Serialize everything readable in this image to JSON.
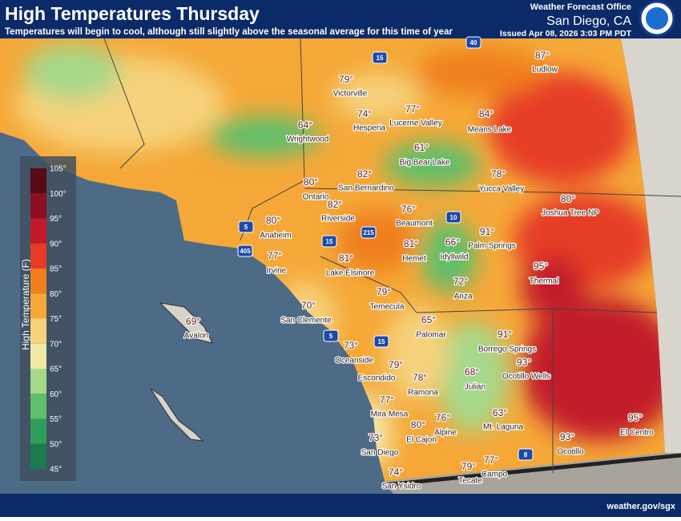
{
  "header": {
    "title": "High Temperatures Thursday",
    "subtitle": "Temperatures will begin to cool, although still slightly above the seasonal average for this time of year",
    "office": "Weather Forecast Office",
    "location": "San Diego, CA",
    "issued": "Issued Apr 08, 2026 3:03 PM PDT"
  },
  "legend": {
    "title": "High Temperature (F)",
    "items": [
      {
        "label": "105°",
        "color": "#5a0a14"
      },
      {
        "label": "100°",
        "color": "#8b0f22"
      },
      {
        "label": "95°",
        "color": "#c21a2a"
      },
      {
        "label": "90°",
        "color": "#e63c26"
      },
      {
        "label": "85°",
        "color": "#f07f1c"
      },
      {
        "label": "80°",
        "color": "#f5a838"
      },
      {
        "label": "75°",
        "color": "#f6d27a"
      },
      {
        "label": "70°",
        "color": "#f2e8a6"
      },
      {
        "label": "65°",
        "color": "#a5d88a"
      },
      {
        "label": "60°",
        "color": "#5fbf6a"
      },
      {
        "label": "55°",
        "color": "#2e9e5a"
      },
      {
        "label": "50°",
        "color": "#1b7a4e"
      },
      {
        "label": "45°",
        "color": "#17a5a0"
      }
    ]
  },
  "cities": [
    {
      "name": "Victorville",
      "temp": "79°"
    },
    {
      "name": "Hesperia",
      "temp": "74°"
    },
    {
      "name": "Lucerne Valley",
      "temp": "77°"
    },
    {
      "name": "Means Lake",
      "temp": "84°"
    },
    {
      "name": "Ludlow",
      "temp": "87°"
    },
    {
      "name": "Wrightwood",
      "temp": "64°"
    },
    {
      "name": "Big Bear Lake",
      "temp": "61°"
    },
    {
      "name": "Yucca Valley",
      "temp": "78°"
    },
    {
      "name": "Joshua Tree NP",
      "temp": "80°"
    },
    {
      "name": "Ontario",
      "temp": "80°"
    },
    {
      "name": "San Bernardino",
      "temp": "82°"
    },
    {
      "name": "Riverside",
      "temp": "82°"
    },
    {
      "name": "Anaheim",
      "temp": "80°"
    },
    {
      "name": "Beaumont",
      "temp": "76°"
    },
    {
      "name": "Palm Springs",
      "temp": "91°"
    },
    {
      "name": "Hemet",
      "temp": "81°"
    },
    {
      "name": "Idyllwild",
      "temp": "66°"
    },
    {
      "name": "Irvine",
      "temp": "77°"
    },
    {
      "name": "Lake Elsinore",
      "temp": "81°"
    },
    {
      "name": "Thermal",
      "temp": "95°"
    },
    {
      "name": "Anza",
      "temp": "72°"
    },
    {
      "name": "Temecula",
      "temp": "79°"
    },
    {
      "name": "San Clemente",
      "temp": "70°"
    },
    {
      "name": "Avalon",
      "temp": "69°"
    },
    {
      "name": "Palomar",
      "temp": "65°"
    },
    {
      "name": "Borrego Springs",
      "temp": "91°"
    },
    {
      "name": "Oceanside",
      "temp": "73°"
    },
    {
      "name": "Ocotillo Wells",
      "temp": "93°"
    },
    {
      "name": "Escondido",
      "temp": "79°"
    },
    {
      "name": "Ramona",
      "temp": "78°"
    },
    {
      "name": "Julian",
      "temp": "68°"
    },
    {
      "name": "Mira Mesa",
      "temp": "77°"
    },
    {
      "name": "Mt. Laguna",
      "temp": "63°"
    },
    {
      "name": "Alpine",
      "temp": "76°"
    },
    {
      "name": "El Cajon",
      "temp": "80°"
    },
    {
      "name": "San Diego",
      "temp": "73°"
    },
    {
      "name": "Ocotillo",
      "temp": "93°"
    },
    {
      "name": "El Centro",
      "temp": "95°"
    },
    {
      "name": "San Ysidro",
      "temp": "74°"
    },
    {
      "name": "Tecate",
      "temp": "79°"
    },
    {
      "name": "Campo",
      "temp": "77°"
    }
  ],
  "highways": [
    "15",
    "40",
    "5",
    "10",
    "215",
    "405",
    "15",
    "5",
    "15",
    "8"
  ],
  "footer": "weather.gov/sgx"
}
